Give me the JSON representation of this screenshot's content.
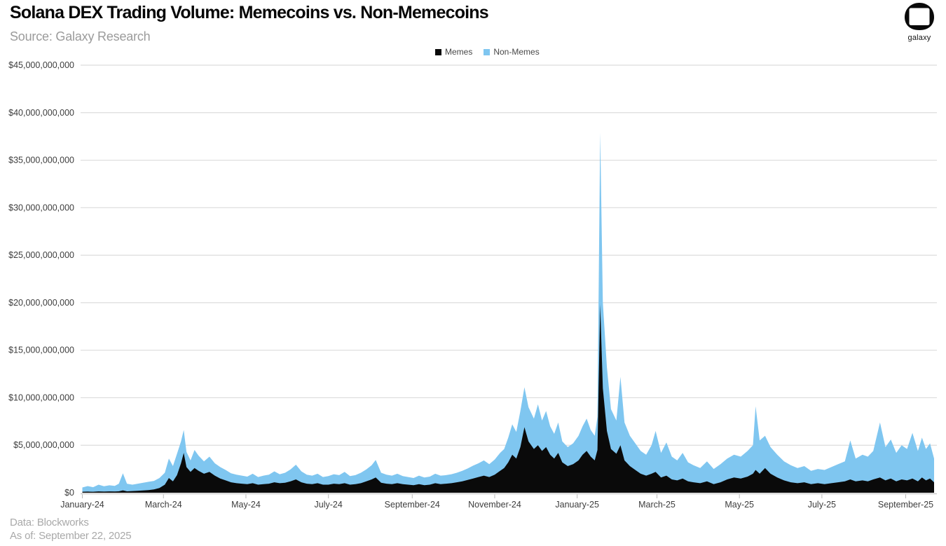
{
  "header": {
    "title": "Solana DEX Trading Volume: Memecoins vs. Non-Memecoins",
    "subtitle": "Source: Galaxy Research"
  },
  "logo": {
    "label": "galaxy"
  },
  "legend": {
    "items": [
      {
        "label": "Memes",
        "color": "#0a0a0a"
      },
      {
        "label": "Non-Memes",
        "color": "#7fc6f0"
      }
    ]
  },
  "footer": {
    "line1": "Data: Blockworks",
    "line2": "As of: September 22, 2025"
  },
  "chart_data": {
    "type": "area",
    "stacked": true,
    "title": "Solana DEX Trading Volume: Memecoins vs. Non-Memecoins",
    "unit": "USD billions",
    "grid": "horizontal",
    "legend_position": "top-center",
    "colors": {
      "memes": "#0a0a0a",
      "non_memes": "#7fc6f0",
      "gridline": "#dcdcdc",
      "axis_line": "#c2c2c2",
      "tick_text": "#3d3d3d"
    },
    "y_axis": {
      "min": 0,
      "max": 45000000000,
      "tick_step": 5000000000,
      "tick_labels": [
        "$0",
        "$5,000,000,000",
        "$10,000,000,000",
        "$15,000,000,000",
        "$20,000,000,000",
        "$25,000,000,000",
        "$30,000,000,000",
        "$35,000,000,000",
        "$40,000,000,000",
        "$45,000,000,000"
      ]
    },
    "x_axis": {
      "start_date": "2024-01-01",
      "end_date": "2025-09-22",
      "tick_labels": [
        "January-24",
        "March-24",
        "May-24",
        "July-24",
        "September-24",
        "November-24",
        "January-25",
        "March-25",
        "May-25",
        "July-25",
        "September-25"
      ],
      "tick_month_offsets": [
        0,
        2,
        4,
        6,
        8,
        10,
        12,
        14,
        16,
        18,
        20
      ]
    },
    "dates": [
      "2024-01-01",
      "2024-01-05",
      "2024-01-09",
      "2024-01-13",
      "2024-01-17",
      "2024-01-21",
      "2024-01-25",
      "2024-01-28",
      "2024-01-31",
      "2024-02-03",
      "2024-02-07",
      "2024-02-11",
      "2024-02-15",
      "2024-02-19",
      "2024-02-23",
      "2024-02-27",
      "2024-03-02",
      "2024-03-05",
      "2024-03-08",
      "2024-03-11",
      "2024-03-14",
      "2024-03-16",
      "2024-03-18",
      "2024-03-21",
      "2024-03-24",
      "2024-03-27",
      "2024-03-31",
      "2024-04-04",
      "2024-04-08",
      "2024-04-12",
      "2024-04-16",
      "2024-04-20",
      "2024-04-24",
      "2024-04-28",
      "2024-05-02",
      "2024-05-06",
      "2024-05-10",
      "2024-05-14",
      "2024-05-18",
      "2024-05-22",
      "2024-05-26",
      "2024-05-30",
      "2024-06-03",
      "2024-06-07",
      "2024-06-11",
      "2024-06-15",
      "2024-06-19",
      "2024-06-23",
      "2024-06-27",
      "2024-07-01",
      "2024-07-05",
      "2024-07-09",
      "2024-07-13",
      "2024-07-17",
      "2024-07-21",
      "2024-07-25",
      "2024-07-29",
      "2024-08-02",
      "2024-08-05",
      "2024-08-09",
      "2024-08-13",
      "2024-08-17",
      "2024-08-21",
      "2024-08-25",
      "2024-08-29",
      "2024-09-02",
      "2024-09-06",
      "2024-09-10",
      "2024-09-14",
      "2024-09-18",
      "2024-09-22",
      "2024-09-26",
      "2024-09-30",
      "2024-10-04",
      "2024-10-08",
      "2024-10-12",
      "2024-10-16",
      "2024-10-20",
      "2024-10-24",
      "2024-10-28",
      "2024-11-01",
      "2024-11-05",
      "2024-11-08",
      "2024-11-11",
      "2024-11-14",
      "2024-11-17",
      "2024-11-20",
      "2024-11-23",
      "2024-11-26",
      "2024-11-30",
      "2024-12-03",
      "2024-12-06",
      "2024-12-09",
      "2024-12-12",
      "2024-12-15",
      "2024-12-18",
      "2024-12-21",
      "2024-12-25",
      "2024-12-29",
      "2025-01-02",
      "2025-01-05",
      "2025-01-08",
      "2025-01-11",
      "2025-01-14",
      "2025-01-16",
      "2025-01-18",
      "2025-01-20",
      "2025-01-23",
      "2025-01-26",
      "2025-01-30",
      "2025-02-02",
      "2025-02-05",
      "2025-02-09",
      "2025-02-13",
      "2025-02-17",
      "2025-02-21",
      "2025-02-25",
      "2025-02-28",
      "2025-03-04",
      "2025-03-08",
      "2025-03-12",
      "2025-03-16",
      "2025-03-20",
      "2025-03-24",
      "2025-03-28",
      "2025-04-02",
      "2025-04-07",
      "2025-04-12",
      "2025-04-17",
      "2025-04-22",
      "2025-04-27",
      "2025-05-02",
      "2025-05-07",
      "2025-05-11",
      "2025-05-13",
      "2025-05-16",
      "2025-05-20",
      "2025-05-24",
      "2025-05-29",
      "2025-06-03",
      "2025-06-08",
      "2025-06-13",
      "2025-06-18",
      "2025-06-23",
      "2025-06-28",
      "2025-07-03",
      "2025-07-08",
      "2025-07-13",
      "2025-07-18",
      "2025-07-22",
      "2025-07-26",
      "2025-07-31",
      "2025-08-04",
      "2025-08-08",
      "2025-08-13",
      "2025-08-17",
      "2025-08-21",
      "2025-08-25",
      "2025-08-29",
      "2025-09-02",
      "2025-09-06",
      "2025-09-10",
      "2025-09-13",
      "2025-09-16",
      "2025-09-19",
      "2025-09-22"
    ],
    "series": [
      {
        "name": "Memes",
        "color": "#0a0a0a",
        "values_billions": [
          0.1,
          0.12,
          0.1,
          0.14,
          0.12,
          0.14,
          0.13,
          0.15,
          0.25,
          0.15,
          0.18,
          0.2,
          0.24,
          0.28,
          0.35,
          0.5,
          0.85,
          1.55,
          1.2,
          1.85,
          3.1,
          4.2,
          2.7,
          2.2,
          2.6,
          2.3,
          2.0,
          2.2,
          1.8,
          1.5,
          1.3,
          1.1,
          1.0,
          0.95,
          0.9,
          1.0,
          0.85,
          0.9,
          0.95,
          1.1,
          1.0,
          1.05,
          1.2,
          1.4,
          1.1,
          0.95,
          0.9,
          1.0,
          0.85,
          0.85,
          0.95,
          0.9,
          1.0,
          0.85,
          0.9,
          1.0,
          1.2,
          1.4,
          1.6,
          1.05,
          0.95,
          0.9,
          1.0,
          0.9,
          0.85,
          0.8,
          0.9,
          0.8,
          0.85,
          1.0,
          0.9,
          0.95,
          1.0,
          1.1,
          1.2,
          1.35,
          1.5,
          1.65,
          1.8,
          1.65,
          1.9,
          2.3,
          2.6,
          3.2,
          4.0,
          3.6,
          4.8,
          6.9,
          5.4,
          4.6,
          5.0,
          4.4,
          4.8,
          4.0,
          3.6,
          4.2,
          3.2,
          2.8,
          3.0,
          3.4,
          4.0,
          4.4,
          3.8,
          3.4,
          4.5,
          19.8,
          11.0,
          6.5,
          4.6,
          4.1,
          5.0,
          3.4,
          2.8,
          2.4,
          2.0,
          1.8,
          2.0,
          2.2,
          1.6,
          1.8,
          1.4,
          1.3,
          1.5,
          1.2,
          1.1,
          1.0,
          1.2,
          0.9,
          1.1,
          1.4,
          1.6,
          1.5,
          1.7,
          2.0,
          2.4,
          2.0,
          2.6,
          2.0,
          1.6,
          1.3,
          1.1,
          1.0,
          1.1,
          0.9,
          1.0,
          0.9,
          1.0,
          1.1,
          1.2,
          1.4,
          1.2,
          1.3,
          1.2,
          1.4,
          1.6,
          1.3,
          1.5,
          1.2,
          1.4,
          1.3,
          1.5,
          1.2,
          1.6,
          1.3,
          1.5,
          1.1
        ]
      },
      {
        "name": "Non-Memes",
        "color": "#7fc6f0",
        "values_billions": [
          0.45,
          0.58,
          0.48,
          0.71,
          0.56,
          0.64,
          0.59,
          0.8,
          1.8,
          0.8,
          0.67,
          0.75,
          0.81,
          0.87,
          0.9,
          1.05,
          1.25,
          2.05,
          1.6,
          2.25,
          2.3,
          2.4,
          1.6,
          1.2,
          1.9,
          1.6,
          1.3,
          1.6,
          1.3,
          1.2,
          1.1,
          0.95,
          0.9,
          0.85,
          0.8,
          1.0,
          0.8,
          0.9,
          0.95,
          1.15,
          0.95,
          1.05,
          1.25,
          1.55,
          1.15,
          0.95,
          0.9,
          1.0,
          0.8,
          0.9,
          1.0,
          0.95,
          1.2,
          0.9,
          0.95,
          1.1,
          1.25,
          1.5,
          1.85,
          1.05,
          0.95,
          0.9,
          1.0,
          0.85,
          0.8,
          0.75,
          0.9,
          0.8,
          0.85,
          1.0,
          0.9,
          0.9,
          0.95,
          1.0,
          1.1,
          1.2,
          1.35,
          1.45,
          1.6,
          1.35,
          1.6,
          1.9,
          2.0,
          2.6,
          3.2,
          2.8,
          3.8,
          4.2,
          3.6,
          3.2,
          4.3,
          3.2,
          3.8,
          3.0,
          2.6,
          3.2,
          2.2,
          2.0,
          2.2,
          2.6,
          3.0,
          3.4,
          2.8,
          2.6,
          3.5,
          18.1,
          9.0,
          6.7,
          4.2,
          3.5,
          7.2,
          4.0,
          3.2,
          2.8,
          2.4,
          2.2,
          3.0,
          4.3,
          2.6,
          3.5,
          2.4,
          2.1,
          2.7,
          2.0,
          1.8,
          1.6,
          2.1,
          1.6,
          1.9,
          2.2,
          2.4,
          2.3,
          2.7,
          3.0,
          6.7,
          3.5,
          3.4,
          2.8,
          2.4,
          2.0,
          1.8,
          1.6,
          1.7,
          1.4,
          1.5,
          1.5,
          1.7,
          1.9,
          2.1,
          4.1,
          2.4,
          2.7,
          2.6,
          3.0,
          5.8,
          3.5,
          4.1,
          3.0,
          3.6,
          3.3,
          4.8,
          3.2,
          4.2,
          3.3,
          3.7,
          2.5
        ]
      }
    ]
  }
}
